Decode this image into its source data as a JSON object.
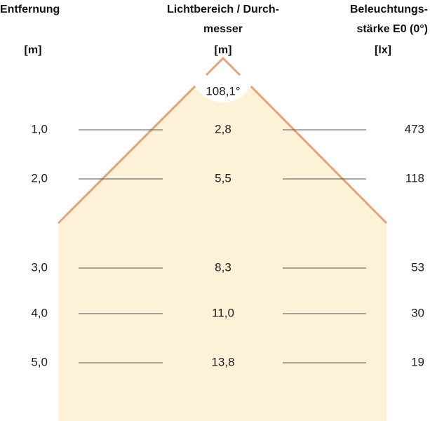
{
  "headers": {
    "distance": {
      "lines": [
        "Entfernung"
      ],
      "unit": "[m]"
    },
    "diameter": {
      "lines": [
        "Lichtbereich / Durch-",
        "messer"
      ],
      "unit": "[m]"
    },
    "illuminance": {
      "lines": [
        "Beleuchtungs-",
        "stärke E0 (0°)"
      ],
      "unit": "[lx]"
    }
  },
  "beam_angle": "108,1°",
  "rows": [
    [
      "1,0",
      "2,8",
      "473"
    ],
    [
      "2,0",
      "5,5",
      "118"
    ],
    [
      "3,0",
      "8,3",
      "53"
    ],
    [
      "4,0",
      "11,0",
      "30"
    ],
    [
      "5,0",
      "13,8",
      "19"
    ]
  ]
}
